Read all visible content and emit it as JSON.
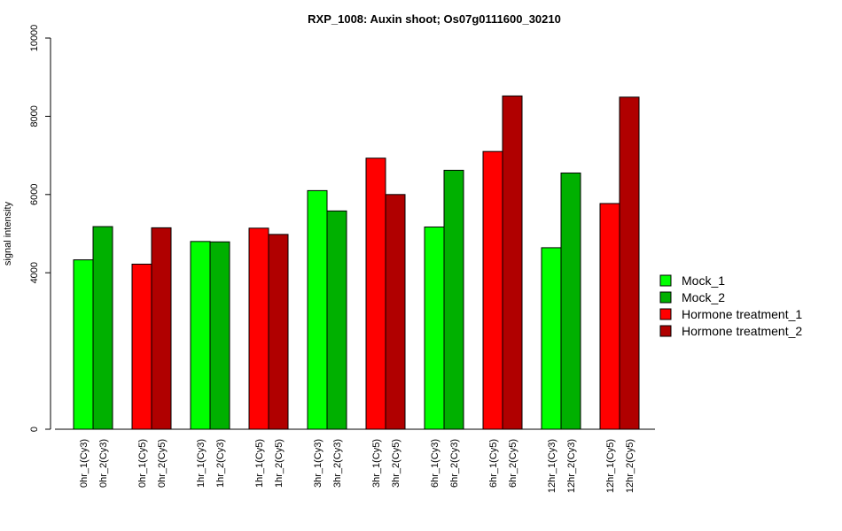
{
  "chart_data": {
    "type": "bar",
    "title": "RXP_1008: Auxin shoot; Os07g0111600_30210",
    "ylabel": "signal intensity",
    "xlabel": "",
    "ylim": [
      0,
      10000
    ],
    "yticks": [
      0,
      4000,
      6000,
      8000,
      10000
    ],
    "grid": false,
    "legend_position": "right",
    "series": [
      {
        "name": "Mock_1",
        "color": "#00ff00"
      },
      {
        "name": "Mock_2",
        "color": "#00b000"
      },
      {
        "name": "Hormone treatment_1",
        "color": "#ff0000"
      },
      {
        "name": "Hormone treatment_2",
        "color": "#b00000"
      }
    ],
    "bars": [
      {
        "label": "0hr_1(Cy3)",
        "value": 4330,
        "series": 0
      },
      {
        "label": "0hr_2(Cy3)",
        "value": 5180,
        "series": 1
      },
      {
        "label": "0hr_1(Cy5)",
        "value": 4220,
        "series": 2
      },
      {
        "label": "0hr_2(Cy5)",
        "value": 5150,
        "series": 3
      },
      {
        "label": "1hr_1(Cy3)",
        "value": 4800,
        "series": 0
      },
      {
        "label": "1hr_2(Cy3)",
        "value": 4790,
        "series": 1
      },
      {
        "label": "1hr_1(Cy5)",
        "value": 5140,
        "series": 2
      },
      {
        "label": "1hr_2(Cy5)",
        "value": 4980,
        "series": 3
      },
      {
        "label": "3hr_1(Cy3)",
        "value": 6100,
        "series": 0
      },
      {
        "label": "3hr_2(Cy3)",
        "value": 5580,
        "series": 1
      },
      {
        "label": "3hr_1(Cy5)",
        "value": 6930,
        "series": 2
      },
      {
        "label": "3hr_2(Cy5)",
        "value": 6000,
        "series": 3
      },
      {
        "label": "6hr_1(Cy3)",
        "value": 5170,
        "series": 0
      },
      {
        "label": "6hr_2(Cy3)",
        "value": 6620,
        "series": 1
      },
      {
        "label": "6hr_1(Cy5)",
        "value": 7100,
        "series": 2
      },
      {
        "label": "6hr_2(Cy5)",
        "value": 8520,
        "series": 3
      },
      {
        "label": "12hr_1(Cy3)",
        "value": 4640,
        "series": 0
      },
      {
        "label": "12hr_2(Cy3)",
        "value": 6550,
        "series": 1
      },
      {
        "label": "12hr_1(Cy5)",
        "value": 5770,
        "series": 2
      },
      {
        "label": "12hr_2(Cy5)",
        "value": 8490,
        "series": 3
      }
    ]
  }
}
